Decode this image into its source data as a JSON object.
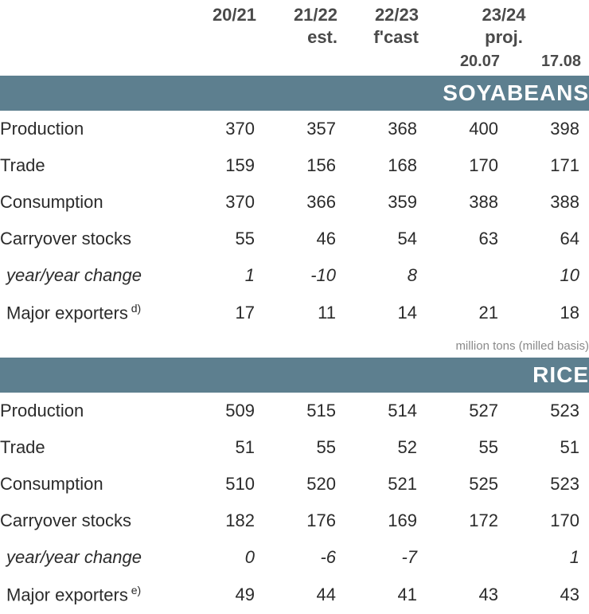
{
  "colors": {
    "band_bg": "#5d7f8f",
    "band_text": "#ffffff",
    "header_text": "#4a4a4a",
    "body_text": "#2b2b2b",
    "note_text": "#8a8a8a",
    "page_bg": "#ffffff"
  },
  "typography": {
    "header_fontsize": 22,
    "band_fontsize": 28,
    "body_fontsize": 22,
    "note_fontsize": 15
  },
  "header": {
    "c1": "20/21",
    "c2_top": "21/22",
    "c2_bot": "est.",
    "c3_top": "22/23",
    "c3_bot": "f'cast",
    "c45_top": "23/24",
    "c45_bot": "proj.",
    "c4_date": "20.07",
    "c5_date": "17.08"
  },
  "sections": [
    {
      "title": "SOYABEANS",
      "unit_note": null,
      "rows": [
        {
          "label": "Production",
          "vals": [
            "370",
            "357",
            "368",
            "400",
            "398"
          ],
          "italic": false,
          "indent": false
        },
        {
          "label": "Trade",
          "vals": [
            "159",
            "156",
            "168",
            "170",
            "171"
          ],
          "italic": false,
          "indent": false
        },
        {
          "label": "Consumption",
          "vals": [
            "370",
            "366",
            "359",
            "388",
            "388"
          ],
          "italic": false,
          "indent": false
        },
        {
          "label": "Carryover stocks",
          "vals": [
            "55",
            "46",
            "54",
            "63",
            "64"
          ],
          "italic": false,
          "indent": false
        },
        {
          "label": "year/year change",
          "vals": [
            "1",
            "-10",
            "8",
            "",
            "10"
          ],
          "italic": true,
          "indent": true
        },
        {
          "label": "Major exporters",
          "sup": "d)",
          "vals": [
            "17",
            "11",
            "14",
            "21",
            "18"
          ],
          "italic": false,
          "indent": true
        }
      ]
    },
    {
      "title": "RICE",
      "unit_note": "million tons (milled basis)",
      "rows": [
        {
          "label": "Production",
          "vals": [
            "509",
            "515",
            "514",
            "527",
            "523"
          ],
          "italic": false,
          "indent": false
        },
        {
          "label": "Trade",
          "vals": [
            "51",
            "55",
            "52",
            "55",
            "51"
          ],
          "italic": false,
          "indent": false
        },
        {
          "label": "Consumption",
          "vals": [
            "510",
            "520",
            "521",
            "525",
            "523"
          ],
          "italic": false,
          "indent": false
        },
        {
          "label": "Carryover stocks",
          "vals": [
            "182",
            "176",
            "169",
            "172",
            "170"
          ],
          "italic": false,
          "indent": false
        },
        {
          "label": "year/year change",
          "vals": [
            "0",
            "-6",
            "-7",
            "",
            "1"
          ],
          "italic": true,
          "indent": true
        },
        {
          "label": "Major exporters",
          "sup": "e)",
          "vals": [
            "49",
            "44",
            "41",
            "43",
            "43"
          ],
          "italic": false,
          "indent": true
        }
      ]
    }
  ]
}
